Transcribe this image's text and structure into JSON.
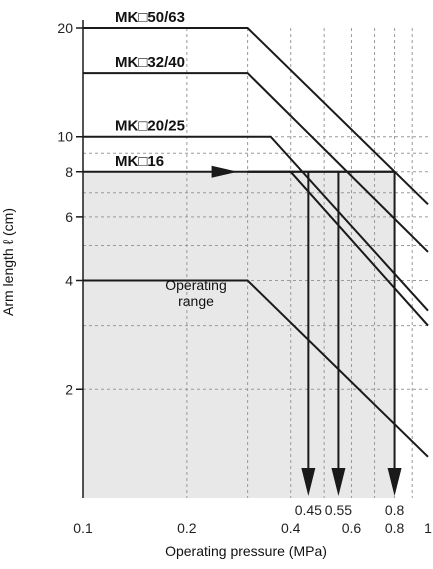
{
  "chart_data": {
    "type": "line",
    "title": "",
    "xlabel": "Operating pressure (MPa)",
    "ylabel": "Arm length ℓ (cm)",
    "x_scale": "log",
    "y_scale": "log",
    "xlim": [
      0.1,
      1.0
    ],
    "ylim": [
      1.0,
      20.0
    ],
    "grid": true,
    "x_ticks": [
      {
        "value": 0.1,
        "label": "0.1"
      },
      {
        "value": 0.2,
        "label": "0.2"
      },
      {
        "value": 0.4,
        "label": "0.4"
      },
      {
        "value": 0.6,
        "label": "0.6"
      },
      {
        "value": 0.8,
        "label": "0.8"
      },
      {
        "value": 1.0,
        "label": "1"
      }
    ],
    "y_ticks": [
      {
        "value": 2,
        "label": "2"
      },
      {
        "value": 4,
        "label": "4"
      },
      {
        "value": 6,
        "label": "6"
      },
      {
        "value": 8,
        "label": "8"
      },
      {
        "value": 10,
        "label": "10"
      },
      {
        "value": 20,
        "label": "20"
      }
    ],
    "series": [
      {
        "name": "MK□50/63",
        "points": [
          [
            0.1,
            20
          ],
          [
            0.3,
            20
          ],
          [
            1.0,
            6.5
          ]
        ]
      },
      {
        "name": "MK□32/40",
        "points": [
          [
            0.1,
            15
          ],
          [
            0.3,
            15
          ],
          [
            1.0,
            4.8
          ]
        ]
      },
      {
        "name": "MK□20/25",
        "points": [
          [
            0.1,
            10
          ],
          [
            0.35,
            10
          ],
          [
            1.0,
            3.3
          ]
        ]
      },
      {
        "name": "MK□16",
        "points": [
          [
            0.1,
            8
          ],
          [
            0.4,
            8
          ],
          [
            1.0,
            3.0
          ]
        ]
      },
      {
        "name": "",
        "points": [
          [
            0.1,
            4
          ],
          [
            0.3,
            4
          ],
          [
            1.0,
            1.3
          ]
        ]
      }
    ],
    "reading_line": {
      "y": 8,
      "x_from": 0.3,
      "x_to": 0.8
    },
    "arrows_down": [
      {
        "x": 0.45,
        "label": "0.45"
      },
      {
        "x": 0.55,
        "label": "0.55"
      },
      {
        "x": 0.8,
        "label": "0.8"
      }
    ],
    "shaded_region": {
      "label_line1": "Operating",
      "label_line2": "range",
      "y_max": 8,
      "x_max": 0.8,
      "color": "#e8e8e8"
    },
    "line_color": "#1a1a1a"
  }
}
